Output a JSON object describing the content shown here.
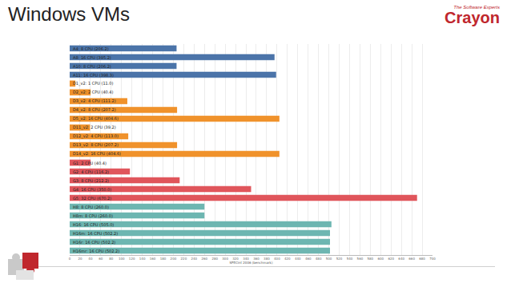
{
  "slide": {
    "logo": "Crayon",
    "logo_tagline": "The Software Experts"
  },
  "chart_data": {
    "type": "bar",
    "orientation": "horizontal",
    "title": "Windows VMs",
    "x_label": "SPECint 2006 (benchmark)",
    "categories": [
      "A4: 8 CPU (206.2)",
      "A8: 16 CPU (395.2)",
      "A10: 8 CPU (206.2)",
      "A11: 16 CPU (398.3)",
      "D1_v2: 1 CPU (11.0)",
      "D2_v2: 2 CPU (40.4)",
      "D3_v2: 4 CPU (111.2)",
      "D4_v2: 8 CPU (207.2)",
      "D5_v2: 16 CPU (404.6)",
      "D11_v2: 2 CPU (39.2)",
      "D12_v2: 4 CPU (113.0)",
      "D13_v2: 8 CPU (207.2)",
      "D14_v2: 16 CPU (404.6)",
      "G1: 2 CPU (40.4)",
      "G2: 4 CPU (116.2)",
      "G3: 8 CPU (212.2)",
      "G4: 16 CPU (350.0)",
      "G5: 32 CPU (670.2)",
      "H8: 8 CPU (260.0)",
      "H8m: 8 CPU (260.0)",
      "H16: 16 CPU (505.0)",
      "H16m: 16 CPU (502.2)",
      "H16r: 16 CPU (502.2)",
      "H16mr: 16 CPU (502.2)"
    ],
    "values": [
      206.2,
      395.2,
      206.2,
      398.3,
      11.0,
      40.4,
      111.2,
      207.2,
      404.6,
      39.2,
      113.0,
      207.2,
      404.6,
      40.4,
      116.2,
      212.2,
      350.0,
      670.2,
      260.0,
      260.0,
      505.0,
      502.2,
      502.2,
      502.2
    ],
    "colors": [
      "#4b74a9",
      "#4b74a9",
      "#4b74a9",
      "#4b74a9",
      "#f0922b",
      "#f0922b",
      "#f0922b",
      "#f0922b",
      "#f0922b",
      "#f0922b",
      "#f0922b",
      "#f0922b",
      "#f0922b",
      "#e0555b",
      "#e0555b",
      "#e0555b",
      "#e0555b",
      "#e0555b",
      "#6db6b1",
      "#6db6b1",
      "#6db6b1",
      "#6db6b1",
      "#6db6b1",
      "#6db6b1"
    ],
    "xlim": [
      0,
      700
    ],
    "xticks": [
      0,
      20,
      40,
      60,
      80,
      100,
      120,
      140,
      160,
      180,
      200,
      220,
      240,
      260,
      280,
      300,
      320,
      340,
      360,
      380,
      400,
      420,
      440,
      460,
      480,
      500,
      520,
      540,
      560,
      580,
      600,
      620,
      640,
      660,
      680,
      700
    ],
    "grid": true,
    "tick_labels": "x"
  }
}
